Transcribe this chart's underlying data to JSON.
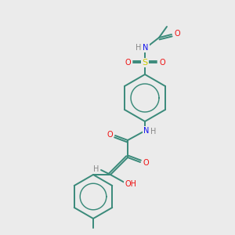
{
  "background_color": "#ebebeb",
  "bond_color": "#3a8a7a",
  "atom_colors": {
    "N": "#1010ee",
    "O": "#ee1010",
    "S": "#cccc00",
    "H": "#888888",
    "C": "#3a8a7a"
  },
  "figsize": [
    3.0,
    3.0
  ],
  "dpi": 100,
  "lw": 1.4
}
